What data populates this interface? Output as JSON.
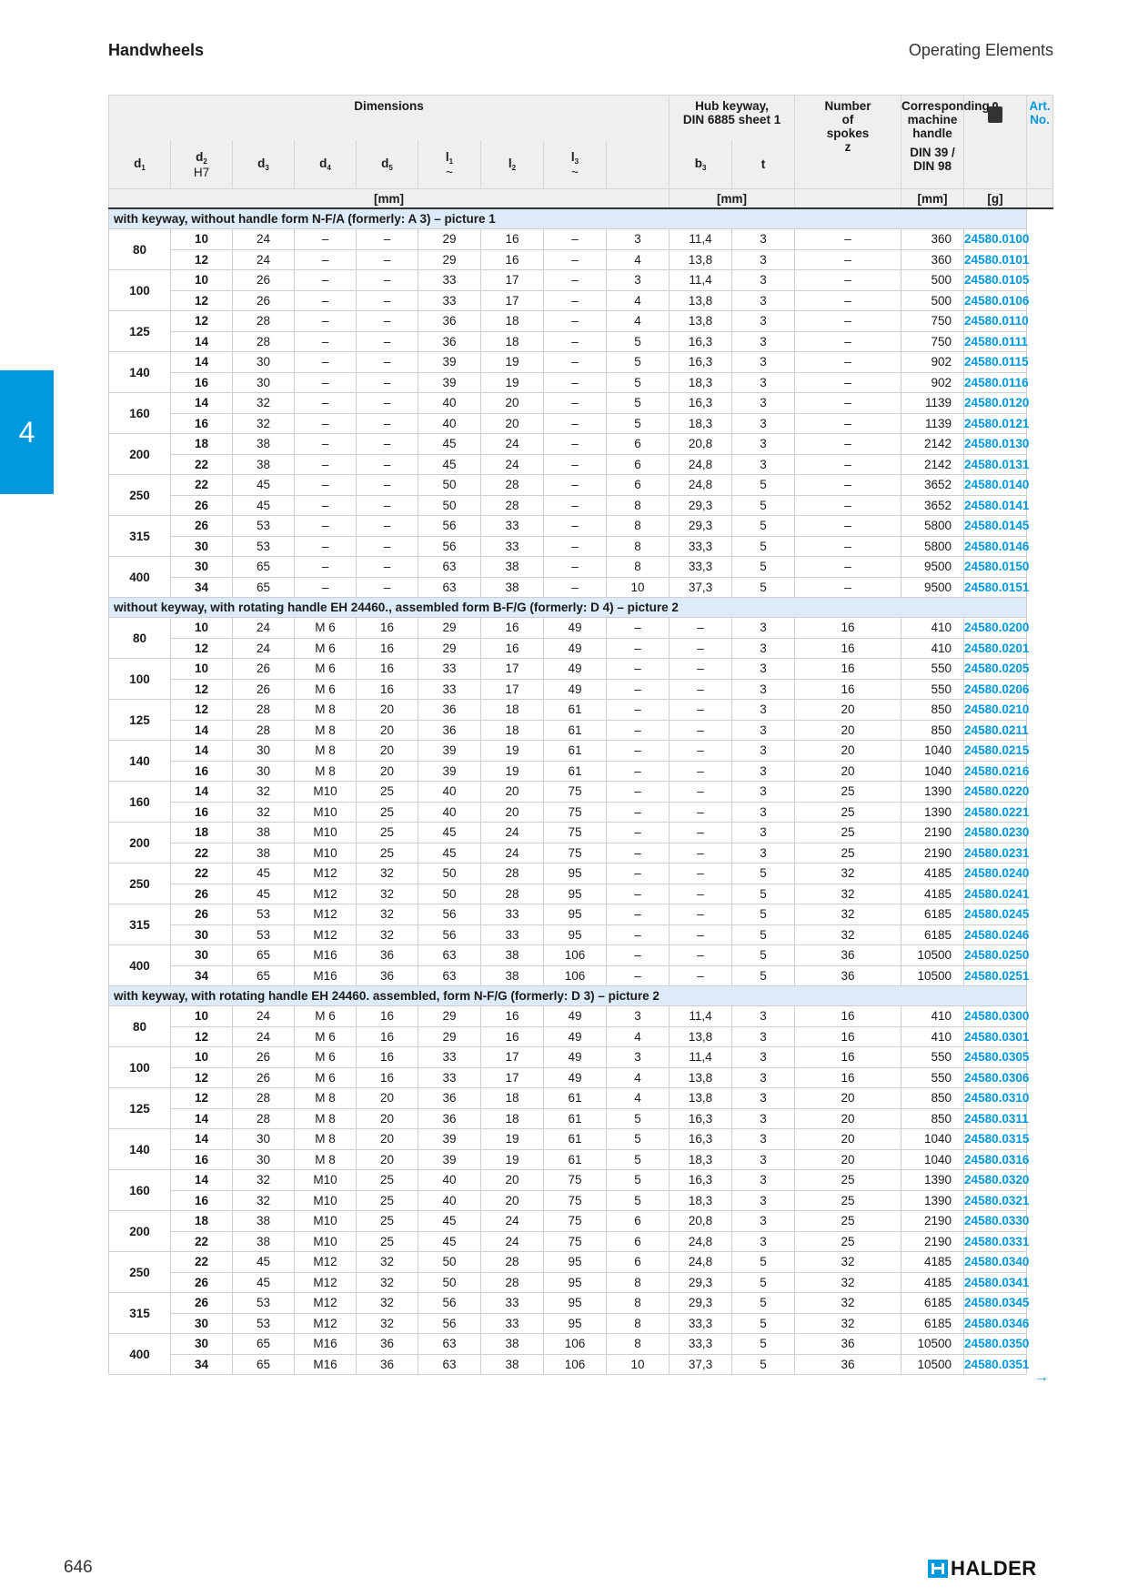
{
  "header": {
    "left": "Handwheels",
    "right": "Operating Elements"
  },
  "side_tab": "4",
  "table_header": {
    "dimensions": "Dimensions",
    "hub_keyway": "Hub keyway,\nDIN 6885 sheet 1",
    "number_of_spokes": "Number\nof\nspokes\nz",
    "corresponding_handle": "Corresponding\nmachine handle",
    "din": "DIN 39 / DIN 98",
    "art_no": "Art. No.",
    "weight_icon": "weight-icon",
    "cols": {
      "d1": "d",
      "d1_sub": "1",
      "d2": "d",
      "d2_sub": "2",
      "d2_tol": "H7",
      "d3": "d",
      "d3_sub": "3",
      "d4": "d",
      "d4_sub": "4",
      "d5": "d",
      "d5_sub": "5",
      "l1": "l",
      "l1_sub": "1",
      "l1_tilde": "~",
      "l2": "l",
      "l2_sub": "2",
      "l3": "l",
      "l3_sub": "3",
      "l3_tilde": "~",
      "b3": "b",
      "b3_sub": "3",
      "t": "t"
    },
    "units": {
      "dimensions": "[mm]",
      "hub": "[mm]",
      "handle": "[mm]",
      "weight": "[g]"
    }
  },
  "sections": [
    {
      "title": "with keyway, without handle form N-F/A (formerly: A 3) – picture 1",
      "groups": [
        {
          "d1": "80",
          "rows": [
            [
              "10",
              "24",
              "–",
              "–",
              "29",
              "16",
              "–",
              "3",
              "11,4",
              "3",
              "–",
              "360",
              "24580.0100"
            ],
            [
              "12",
              "24",
              "–",
              "–",
              "29",
              "16",
              "–",
              "4",
              "13,8",
              "3",
              "–",
              "360",
              "24580.0101"
            ]
          ]
        },
        {
          "d1": "100",
          "rows": [
            [
              "10",
              "26",
              "–",
              "–",
              "33",
              "17",
              "–",
              "3",
              "11,4",
              "3",
              "–",
              "500",
              "24580.0105"
            ],
            [
              "12",
              "26",
              "–",
              "–",
              "33",
              "17",
              "–",
              "4",
              "13,8",
              "3",
              "–",
              "500",
              "24580.0106"
            ]
          ]
        },
        {
          "d1": "125",
          "rows": [
            [
              "12",
              "28",
              "–",
              "–",
              "36",
              "18",
              "–",
              "4",
              "13,8",
              "3",
              "–",
              "750",
              "24580.0110"
            ],
            [
              "14",
              "28",
              "–",
              "–",
              "36",
              "18",
              "–",
              "5",
              "16,3",
              "3",
              "–",
              "750",
              "24580.0111"
            ]
          ]
        },
        {
          "d1": "140",
          "rows": [
            [
              "14",
              "30",
              "–",
              "–",
              "39",
              "19",
              "–",
              "5",
              "16,3",
              "3",
              "–",
              "902",
              "24580.0115"
            ],
            [
              "16",
              "30",
              "–",
              "–",
              "39",
              "19",
              "–",
              "5",
              "18,3",
              "3",
              "–",
              "902",
              "24580.0116"
            ]
          ]
        },
        {
          "d1": "160",
          "rows": [
            [
              "14",
              "32",
              "–",
              "–",
              "40",
              "20",
              "–",
              "5",
              "16,3",
              "3",
              "–",
              "1139",
              "24580.0120"
            ],
            [
              "16",
              "32",
              "–",
              "–",
              "40",
              "20",
              "–",
              "5",
              "18,3",
              "3",
              "–",
              "1139",
              "24580.0121"
            ]
          ]
        },
        {
          "d1": "200",
          "rows": [
            [
              "18",
              "38",
              "–",
              "–",
              "45",
              "24",
              "–",
              "6",
              "20,8",
              "3",
              "–",
              "2142",
              "24580.0130"
            ],
            [
              "22",
              "38",
              "–",
              "–",
              "45",
              "24",
              "–",
              "6",
              "24,8",
              "3",
              "–",
              "2142",
              "24580.0131"
            ]
          ]
        },
        {
          "d1": "250",
          "rows": [
            [
              "22",
              "45",
              "–",
              "–",
              "50",
              "28",
              "–",
              "6",
              "24,8",
              "5",
              "–",
              "3652",
              "24580.0140"
            ],
            [
              "26",
              "45",
              "–",
              "–",
              "50",
              "28",
              "–",
              "8",
              "29,3",
              "5",
              "–",
              "3652",
              "24580.0141"
            ]
          ]
        },
        {
          "d1": "315",
          "rows": [
            [
              "26",
              "53",
              "–",
              "–",
              "56",
              "33",
              "–",
              "8",
              "29,3",
              "5",
              "–",
              "5800",
              "24580.0145"
            ],
            [
              "30",
              "53",
              "–",
              "–",
              "56",
              "33",
              "–",
              "8",
              "33,3",
              "5",
              "–",
              "5800",
              "24580.0146"
            ]
          ]
        },
        {
          "d1": "400",
          "rows": [
            [
              "30",
              "65",
              "–",
              "–",
              "63",
              "38",
              "–",
              "8",
              "33,3",
              "5",
              "–",
              "9500",
              "24580.0150"
            ],
            [
              "34",
              "65",
              "–",
              "–",
              "63",
              "38",
              "–",
              "10",
              "37,3",
              "5",
              "–",
              "9500",
              "24580.0151"
            ]
          ]
        }
      ]
    },
    {
      "title": "without keyway, with rotating handle EH 24460., assembled form B-F/G (formerly: D 4) – picture 2",
      "groups": [
        {
          "d1": "80",
          "rows": [
            [
              "10",
              "24",
              "M 6",
              "16",
              "29",
              "16",
              "49",
              "–",
              "–",
              "3",
              "16",
              "410",
              "24580.0200"
            ],
            [
              "12",
              "24",
              "M 6",
              "16",
              "29",
              "16",
              "49",
              "–",
              "–",
              "3",
              "16",
              "410",
              "24580.0201"
            ]
          ]
        },
        {
          "d1": "100",
          "rows": [
            [
              "10",
              "26",
              "M 6",
              "16",
              "33",
              "17",
              "49",
              "–",
              "–",
              "3",
              "16",
              "550",
              "24580.0205"
            ],
            [
              "12",
              "26",
              "M 6",
              "16",
              "33",
              "17",
              "49",
              "–",
              "–",
              "3",
              "16",
              "550",
              "24580.0206"
            ]
          ]
        },
        {
          "d1": "125",
          "rows": [
            [
              "12",
              "28",
              "M 8",
              "20",
              "36",
              "18",
              "61",
              "–",
              "–",
              "3",
              "20",
              "850",
              "24580.0210"
            ],
            [
              "14",
              "28",
              "M 8",
              "20",
              "36",
              "18",
              "61",
              "–",
              "–",
              "3",
              "20",
              "850",
              "24580.0211"
            ]
          ]
        },
        {
          "d1": "140",
          "rows": [
            [
              "14",
              "30",
              "M 8",
              "20",
              "39",
              "19",
              "61",
              "–",
              "–",
              "3",
              "20",
              "1040",
              "24580.0215"
            ],
            [
              "16",
              "30",
              "M 8",
              "20",
              "39",
              "19",
              "61",
              "–",
              "–",
              "3",
              "20",
              "1040",
              "24580.0216"
            ]
          ]
        },
        {
          "d1": "160",
          "rows": [
            [
              "14",
              "32",
              "M10",
              "25",
              "40",
              "20",
              "75",
              "–",
              "–",
              "3",
              "25",
              "1390",
              "24580.0220"
            ],
            [
              "16",
              "32",
              "M10",
              "25",
              "40",
              "20",
              "75",
              "–",
              "–",
              "3",
              "25",
              "1390",
              "24580.0221"
            ]
          ]
        },
        {
          "d1": "200",
          "rows": [
            [
              "18",
              "38",
              "M10",
              "25",
              "45",
              "24",
              "75",
              "–",
              "–",
              "3",
              "25",
              "2190",
              "24580.0230"
            ],
            [
              "22",
              "38",
              "M10",
              "25",
              "45",
              "24",
              "75",
              "–",
              "–",
              "3",
              "25",
              "2190",
              "24580.0231"
            ]
          ]
        },
        {
          "d1": "250",
          "rows": [
            [
              "22",
              "45",
              "M12",
              "32",
              "50",
              "28",
              "95",
              "–",
              "–",
              "5",
              "32",
              "4185",
              "24580.0240"
            ],
            [
              "26",
              "45",
              "M12",
              "32",
              "50",
              "28",
              "95",
              "–",
              "–",
              "5",
              "32",
              "4185",
              "24580.0241"
            ]
          ]
        },
        {
          "d1": "315",
          "rows": [
            [
              "26",
              "53",
              "M12",
              "32",
              "56",
              "33",
              "95",
              "–",
              "–",
              "5",
              "32",
              "6185",
              "24580.0245"
            ],
            [
              "30",
              "53",
              "M12",
              "32",
              "56",
              "33",
              "95",
              "–",
              "–",
              "5",
              "32",
              "6185",
              "24580.0246"
            ]
          ]
        },
        {
          "d1": "400",
          "rows": [
            [
              "30",
              "65",
              "M16",
              "36",
              "63",
              "38",
              "106",
              "–",
              "–",
              "5",
              "36",
              "10500",
              "24580.0250"
            ],
            [
              "34",
              "65",
              "M16",
              "36",
              "63",
              "38",
              "106",
              "–",
              "–",
              "5",
              "36",
              "10500",
              "24580.0251"
            ]
          ]
        }
      ]
    },
    {
      "title": "with keyway, with rotating handle EH 24460. assembled, form N-F/G (formerly: D 3) – picture 2",
      "groups": [
        {
          "d1": "80",
          "rows": [
            [
              "10",
              "24",
              "M 6",
              "16",
              "29",
              "16",
              "49",
              "3",
              "11,4",
              "3",
              "16",
              "410",
              "24580.0300"
            ],
            [
              "12",
              "24",
              "M 6",
              "16",
              "29",
              "16",
              "49",
              "4",
              "13,8",
              "3",
              "16",
              "410",
              "24580.0301"
            ]
          ]
        },
        {
          "d1": "100",
          "rows": [
            [
              "10",
              "26",
              "M 6",
              "16",
              "33",
              "17",
              "49",
              "3",
              "11,4",
              "3",
              "16",
              "550",
              "24580.0305"
            ],
            [
              "12",
              "26",
              "M 6",
              "16",
              "33",
              "17",
              "49",
              "4",
              "13,8",
              "3",
              "16",
              "550",
              "24580.0306"
            ]
          ]
        },
        {
          "d1": "125",
          "rows": [
            [
              "12",
              "28",
              "M 8",
              "20",
              "36",
              "18",
              "61",
              "4",
              "13,8",
              "3",
              "20",
              "850",
              "24580.0310"
            ],
            [
              "14",
              "28",
              "M 8",
              "20",
              "36",
              "18",
              "61",
              "5",
              "16,3",
              "3",
              "20",
              "850",
              "24580.0311"
            ]
          ]
        },
        {
          "d1": "140",
          "rows": [
            [
              "14",
              "30",
              "M 8",
              "20",
              "39",
              "19",
              "61",
              "5",
              "16,3",
              "3",
              "20",
              "1040",
              "24580.0315"
            ],
            [
              "16",
              "30",
              "M 8",
              "20",
              "39",
              "19",
              "61",
              "5",
              "18,3",
              "3",
              "20",
              "1040",
              "24580.0316"
            ]
          ]
        },
        {
          "d1": "160",
          "rows": [
            [
              "14",
              "32",
              "M10",
              "25",
              "40",
              "20",
              "75",
              "5",
              "16,3",
              "3",
              "25",
              "1390",
              "24580.0320"
            ],
            [
              "16",
              "32",
              "M10",
              "25",
              "40",
              "20",
              "75",
              "5",
              "18,3",
              "3",
              "25",
              "1390",
              "24580.0321"
            ]
          ]
        },
        {
          "d1": "200",
          "rows": [
            [
              "18",
              "38",
              "M10",
              "25",
              "45",
              "24",
              "75",
              "6",
              "20,8",
              "3",
              "25",
              "2190",
              "24580.0330"
            ],
            [
              "22",
              "38",
              "M10",
              "25",
              "45",
              "24",
              "75",
              "6",
              "24,8",
              "3",
              "25",
              "2190",
              "24580.0331"
            ]
          ]
        },
        {
          "d1": "250",
          "rows": [
            [
              "22",
              "45",
              "M12",
              "32",
              "50",
              "28",
              "95",
              "6",
              "24,8",
              "5",
              "32",
              "4185",
              "24580.0340"
            ],
            [
              "26",
              "45",
              "M12",
              "32",
              "50",
              "28",
              "95",
              "8",
              "29,3",
              "5",
              "32",
              "4185",
              "24580.0341"
            ]
          ]
        },
        {
          "d1": "315",
          "rows": [
            [
              "26",
              "53",
              "M12",
              "32",
              "56",
              "33",
              "95",
              "8",
              "29,3",
              "5",
              "32",
              "6185",
              "24580.0345"
            ],
            [
              "30",
              "53",
              "M12",
              "32",
              "56",
              "33",
              "95",
              "8",
              "33,3",
              "5",
              "32",
              "6185",
              "24580.0346"
            ]
          ]
        },
        {
          "d1": "400",
          "rows": [
            [
              "30",
              "65",
              "M16",
              "36",
              "63",
              "38",
              "106",
              "8",
              "33,3",
              "5",
              "36",
              "10500",
              "24580.0350"
            ],
            [
              "34",
              "65",
              "M16",
              "36",
              "63",
              "38",
              "106",
              "10",
              "37,3",
              "5",
              "36",
              "10500",
              "24580.0351"
            ]
          ]
        }
      ]
    }
  ],
  "continue_arrow": "→",
  "footer": {
    "page_number": "646",
    "logo_text": "HALDER",
    "logo_icon": "halder-logo-icon"
  },
  "colors": {
    "accent": "#0099dd",
    "section_bg": "#dcebf7",
    "header_bg": "#efefef"
  }
}
